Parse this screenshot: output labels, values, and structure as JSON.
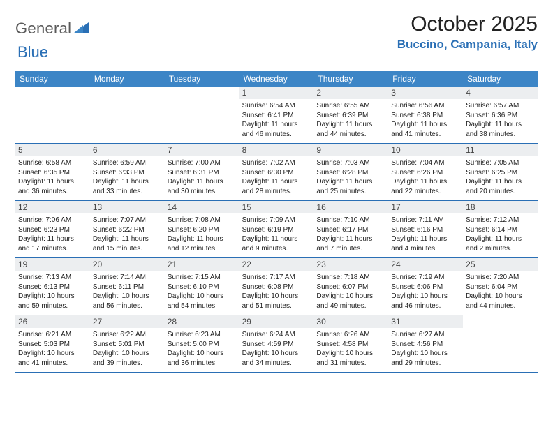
{
  "logo": {
    "text1": "General",
    "text2": "Blue"
  },
  "title": "October 2025",
  "location": "Buccino, Campania, Italy",
  "colors": {
    "header_bg": "#3c85c6",
    "accent": "#2a6fb5",
    "daynum_bg": "#eceef0",
    "page_bg": "#ffffff",
    "text": "#222222"
  },
  "fonts": {
    "title_size_pt": 22,
    "location_size_pt": 13,
    "dayheader_size_pt": 9,
    "daynum_size_pt": 9,
    "detail_size_pt": 7.5
  },
  "day_labels": [
    "Sunday",
    "Monday",
    "Tuesday",
    "Wednesday",
    "Thursday",
    "Friday",
    "Saturday"
  ],
  "weeks": [
    [
      {
        "n": "",
        "sr": "",
        "ss": "",
        "dl": ""
      },
      {
        "n": "",
        "sr": "",
        "ss": "",
        "dl": ""
      },
      {
        "n": "",
        "sr": "",
        "ss": "",
        "dl": ""
      },
      {
        "n": "1",
        "sr": "Sunrise: 6:54 AM",
        "ss": "Sunset: 6:41 PM",
        "dl": "Daylight: 11 hours and 46 minutes."
      },
      {
        "n": "2",
        "sr": "Sunrise: 6:55 AM",
        "ss": "Sunset: 6:39 PM",
        "dl": "Daylight: 11 hours and 44 minutes."
      },
      {
        "n": "3",
        "sr": "Sunrise: 6:56 AM",
        "ss": "Sunset: 6:38 PM",
        "dl": "Daylight: 11 hours and 41 minutes."
      },
      {
        "n": "4",
        "sr": "Sunrise: 6:57 AM",
        "ss": "Sunset: 6:36 PM",
        "dl": "Daylight: 11 hours and 38 minutes."
      }
    ],
    [
      {
        "n": "5",
        "sr": "Sunrise: 6:58 AM",
        "ss": "Sunset: 6:35 PM",
        "dl": "Daylight: 11 hours and 36 minutes."
      },
      {
        "n": "6",
        "sr": "Sunrise: 6:59 AM",
        "ss": "Sunset: 6:33 PM",
        "dl": "Daylight: 11 hours and 33 minutes."
      },
      {
        "n": "7",
        "sr": "Sunrise: 7:00 AM",
        "ss": "Sunset: 6:31 PM",
        "dl": "Daylight: 11 hours and 30 minutes."
      },
      {
        "n": "8",
        "sr": "Sunrise: 7:02 AM",
        "ss": "Sunset: 6:30 PM",
        "dl": "Daylight: 11 hours and 28 minutes."
      },
      {
        "n": "9",
        "sr": "Sunrise: 7:03 AM",
        "ss": "Sunset: 6:28 PM",
        "dl": "Daylight: 11 hours and 25 minutes."
      },
      {
        "n": "10",
        "sr": "Sunrise: 7:04 AM",
        "ss": "Sunset: 6:26 PM",
        "dl": "Daylight: 11 hours and 22 minutes."
      },
      {
        "n": "11",
        "sr": "Sunrise: 7:05 AM",
        "ss": "Sunset: 6:25 PM",
        "dl": "Daylight: 11 hours and 20 minutes."
      }
    ],
    [
      {
        "n": "12",
        "sr": "Sunrise: 7:06 AM",
        "ss": "Sunset: 6:23 PM",
        "dl": "Daylight: 11 hours and 17 minutes."
      },
      {
        "n": "13",
        "sr": "Sunrise: 7:07 AM",
        "ss": "Sunset: 6:22 PM",
        "dl": "Daylight: 11 hours and 15 minutes."
      },
      {
        "n": "14",
        "sr": "Sunrise: 7:08 AM",
        "ss": "Sunset: 6:20 PM",
        "dl": "Daylight: 11 hours and 12 minutes."
      },
      {
        "n": "15",
        "sr": "Sunrise: 7:09 AM",
        "ss": "Sunset: 6:19 PM",
        "dl": "Daylight: 11 hours and 9 minutes."
      },
      {
        "n": "16",
        "sr": "Sunrise: 7:10 AM",
        "ss": "Sunset: 6:17 PM",
        "dl": "Daylight: 11 hours and 7 minutes."
      },
      {
        "n": "17",
        "sr": "Sunrise: 7:11 AM",
        "ss": "Sunset: 6:16 PM",
        "dl": "Daylight: 11 hours and 4 minutes."
      },
      {
        "n": "18",
        "sr": "Sunrise: 7:12 AM",
        "ss": "Sunset: 6:14 PM",
        "dl": "Daylight: 11 hours and 2 minutes."
      }
    ],
    [
      {
        "n": "19",
        "sr": "Sunrise: 7:13 AM",
        "ss": "Sunset: 6:13 PM",
        "dl": "Daylight: 10 hours and 59 minutes."
      },
      {
        "n": "20",
        "sr": "Sunrise: 7:14 AM",
        "ss": "Sunset: 6:11 PM",
        "dl": "Daylight: 10 hours and 56 minutes."
      },
      {
        "n": "21",
        "sr": "Sunrise: 7:15 AM",
        "ss": "Sunset: 6:10 PM",
        "dl": "Daylight: 10 hours and 54 minutes."
      },
      {
        "n": "22",
        "sr": "Sunrise: 7:17 AM",
        "ss": "Sunset: 6:08 PM",
        "dl": "Daylight: 10 hours and 51 minutes."
      },
      {
        "n": "23",
        "sr": "Sunrise: 7:18 AM",
        "ss": "Sunset: 6:07 PM",
        "dl": "Daylight: 10 hours and 49 minutes."
      },
      {
        "n": "24",
        "sr": "Sunrise: 7:19 AM",
        "ss": "Sunset: 6:06 PM",
        "dl": "Daylight: 10 hours and 46 minutes."
      },
      {
        "n": "25",
        "sr": "Sunrise: 7:20 AM",
        "ss": "Sunset: 6:04 PM",
        "dl": "Daylight: 10 hours and 44 minutes."
      }
    ],
    [
      {
        "n": "26",
        "sr": "Sunrise: 6:21 AM",
        "ss": "Sunset: 5:03 PM",
        "dl": "Daylight: 10 hours and 41 minutes."
      },
      {
        "n": "27",
        "sr": "Sunrise: 6:22 AM",
        "ss": "Sunset: 5:01 PM",
        "dl": "Daylight: 10 hours and 39 minutes."
      },
      {
        "n": "28",
        "sr": "Sunrise: 6:23 AM",
        "ss": "Sunset: 5:00 PM",
        "dl": "Daylight: 10 hours and 36 minutes."
      },
      {
        "n": "29",
        "sr": "Sunrise: 6:24 AM",
        "ss": "Sunset: 4:59 PM",
        "dl": "Daylight: 10 hours and 34 minutes."
      },
      {
        "n": "30",
        "sr": "Sunrise: 6:26 AM",
        "ss": "Sunset: 4:58 PM",
        "dl": "Daylight: 10 hours and 31 minutes."
      },
      {
        "n": "31",
        "sr": "Sunrise: 6:27 AM",
        "ss": "Sunset: 4:56 PM",
        "dl": "Daylight: 10 hours and 29 minutes."
      },
      {
        "n": "",
        "sr": "",
        "ss": "",
        "dl": ""
      }
    ]
  ]
}
